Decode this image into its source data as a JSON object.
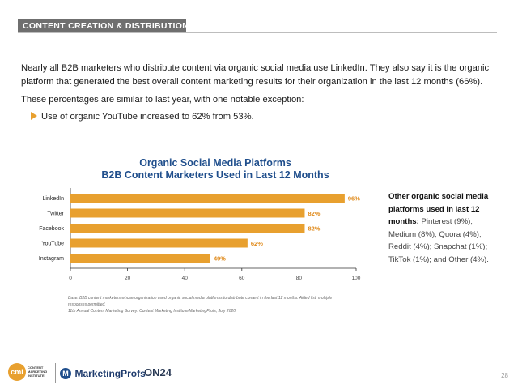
{
  "section_header": "CONTENT CREATION & DISTRIBUTION",
  "body": {
    "paragraph1": "Nearly all B2B marketers who distribute content via organic social media use LinkedIn. They also say it is the organic platform that generated the best overall content marketing results for their organization in the last 12 months (66%).",
    "paragraph2": "These percentages are similar to last year, with one notable exception:",
    "bullet": "Use of organic YouTube increased to 62% from 53%."
  },
  "chart_data": {
    "type": "bar",
    "orientation": "horizontal",
    "title_line1": "Organic Social Media Platforms",
    "title_line2": "B2B Content Marketers Used in Last 12 Months",
    "categories": [
      "LinkedIn",
      "Twitter",
      "Facebook",
      "YouTube",
      "Instagram"
    ],
    "values": [
      96,
      82,
      82,
      62,
      49
    ],
    "value_labels": [
      "96%",
      "82%",
      "82%",
      "62%",
      "49%"
    ],
    "xlim": [
      0,
      100
    ],
    "xticks": [
      0,
      20,
      40,
      60,
      80,
      100
    ],
    "bar_color": "#e8a02f",
    "label_color": "#e08a1a",
    "grid": false
  },
  "side_note": {
    "bold": "Other organic social media platforms used in last 12 months:",
    "text": " Pinterest (9%); Medium (8%); Quora (4%); Reddit (4%); Snapchat (1%); TikTok (1%); and Other (4%)."
  },
  "footnote": {
    "line1": "Base: B2B content marketers whose organization used organic social media platforms to distribute content in the last 12 months. Aided list; multiple responses permitted.",
    "line2": "11th Annual Content Marketing Survey: Content Marketing Institute/MarketingProfs, July 2020"
  },
  "logos": {
    "cmi_mark": "cmi",
    "cmi_words": "CONTENT MARKETING INSTITUTE",
    "mp_mark": "M",
    "mp_text": "MarketingProfs",
    "on24_text": "ON24"
  },
  "page_number": "28"
}
